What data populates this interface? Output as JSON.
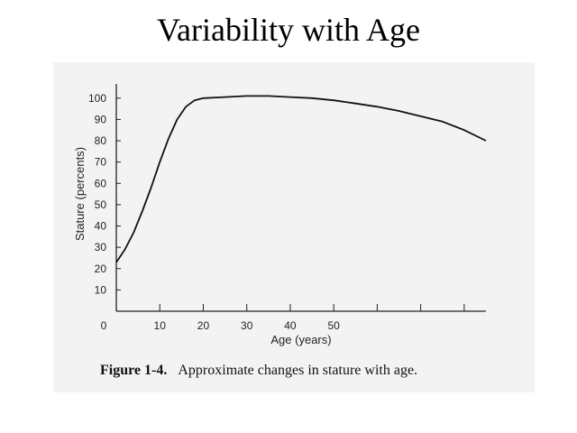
{
  "slide": {
    "title": "Variability with Age"
  },
  "figure": {
    "caption_label": "Figure 1-4.",
    "caption_text": "Approximate changes in stature with age."
  },
  "chart_data": {
    "type": "line",
    "title": "",
    "xlabel": "Age (years)",
    "ylabel": "Stature (percents)",
    "xlim": [
      0,
      85
    ],
    "ylim": [
      0,
      105
    ],
    "x_ticks": [
      0,
      10,
      20,
      30,
      40,
      50
    ],
    "y_ticks": [
      10,
      20,
      30,
      40,
      50,
      60,
      70,
      80,
      90,
      100
    ],
    "grid": false,
    "series": [
      {
        "x": [
          0,
          2,
          4,
          6,
          8,
          10,
          12,
          14,
          16,
          18,
          20,
          25,
          30,
          35,
          40,
          45,
          50,
          55,
          60,
          65,
          70,
          75,
          80,
          85
        ],
        "y": [
          23,
          29,
          37,
          47,
          58,
          70,
          81,
          90,
          96,
          99,
          100,
          100.5,
          101,
          101,
          100.5,
          100,
          99,
          97.5,
          96,
          94,
          91.5,
          89,
          85,
          80
        ]
      }
    ]
  }
}
